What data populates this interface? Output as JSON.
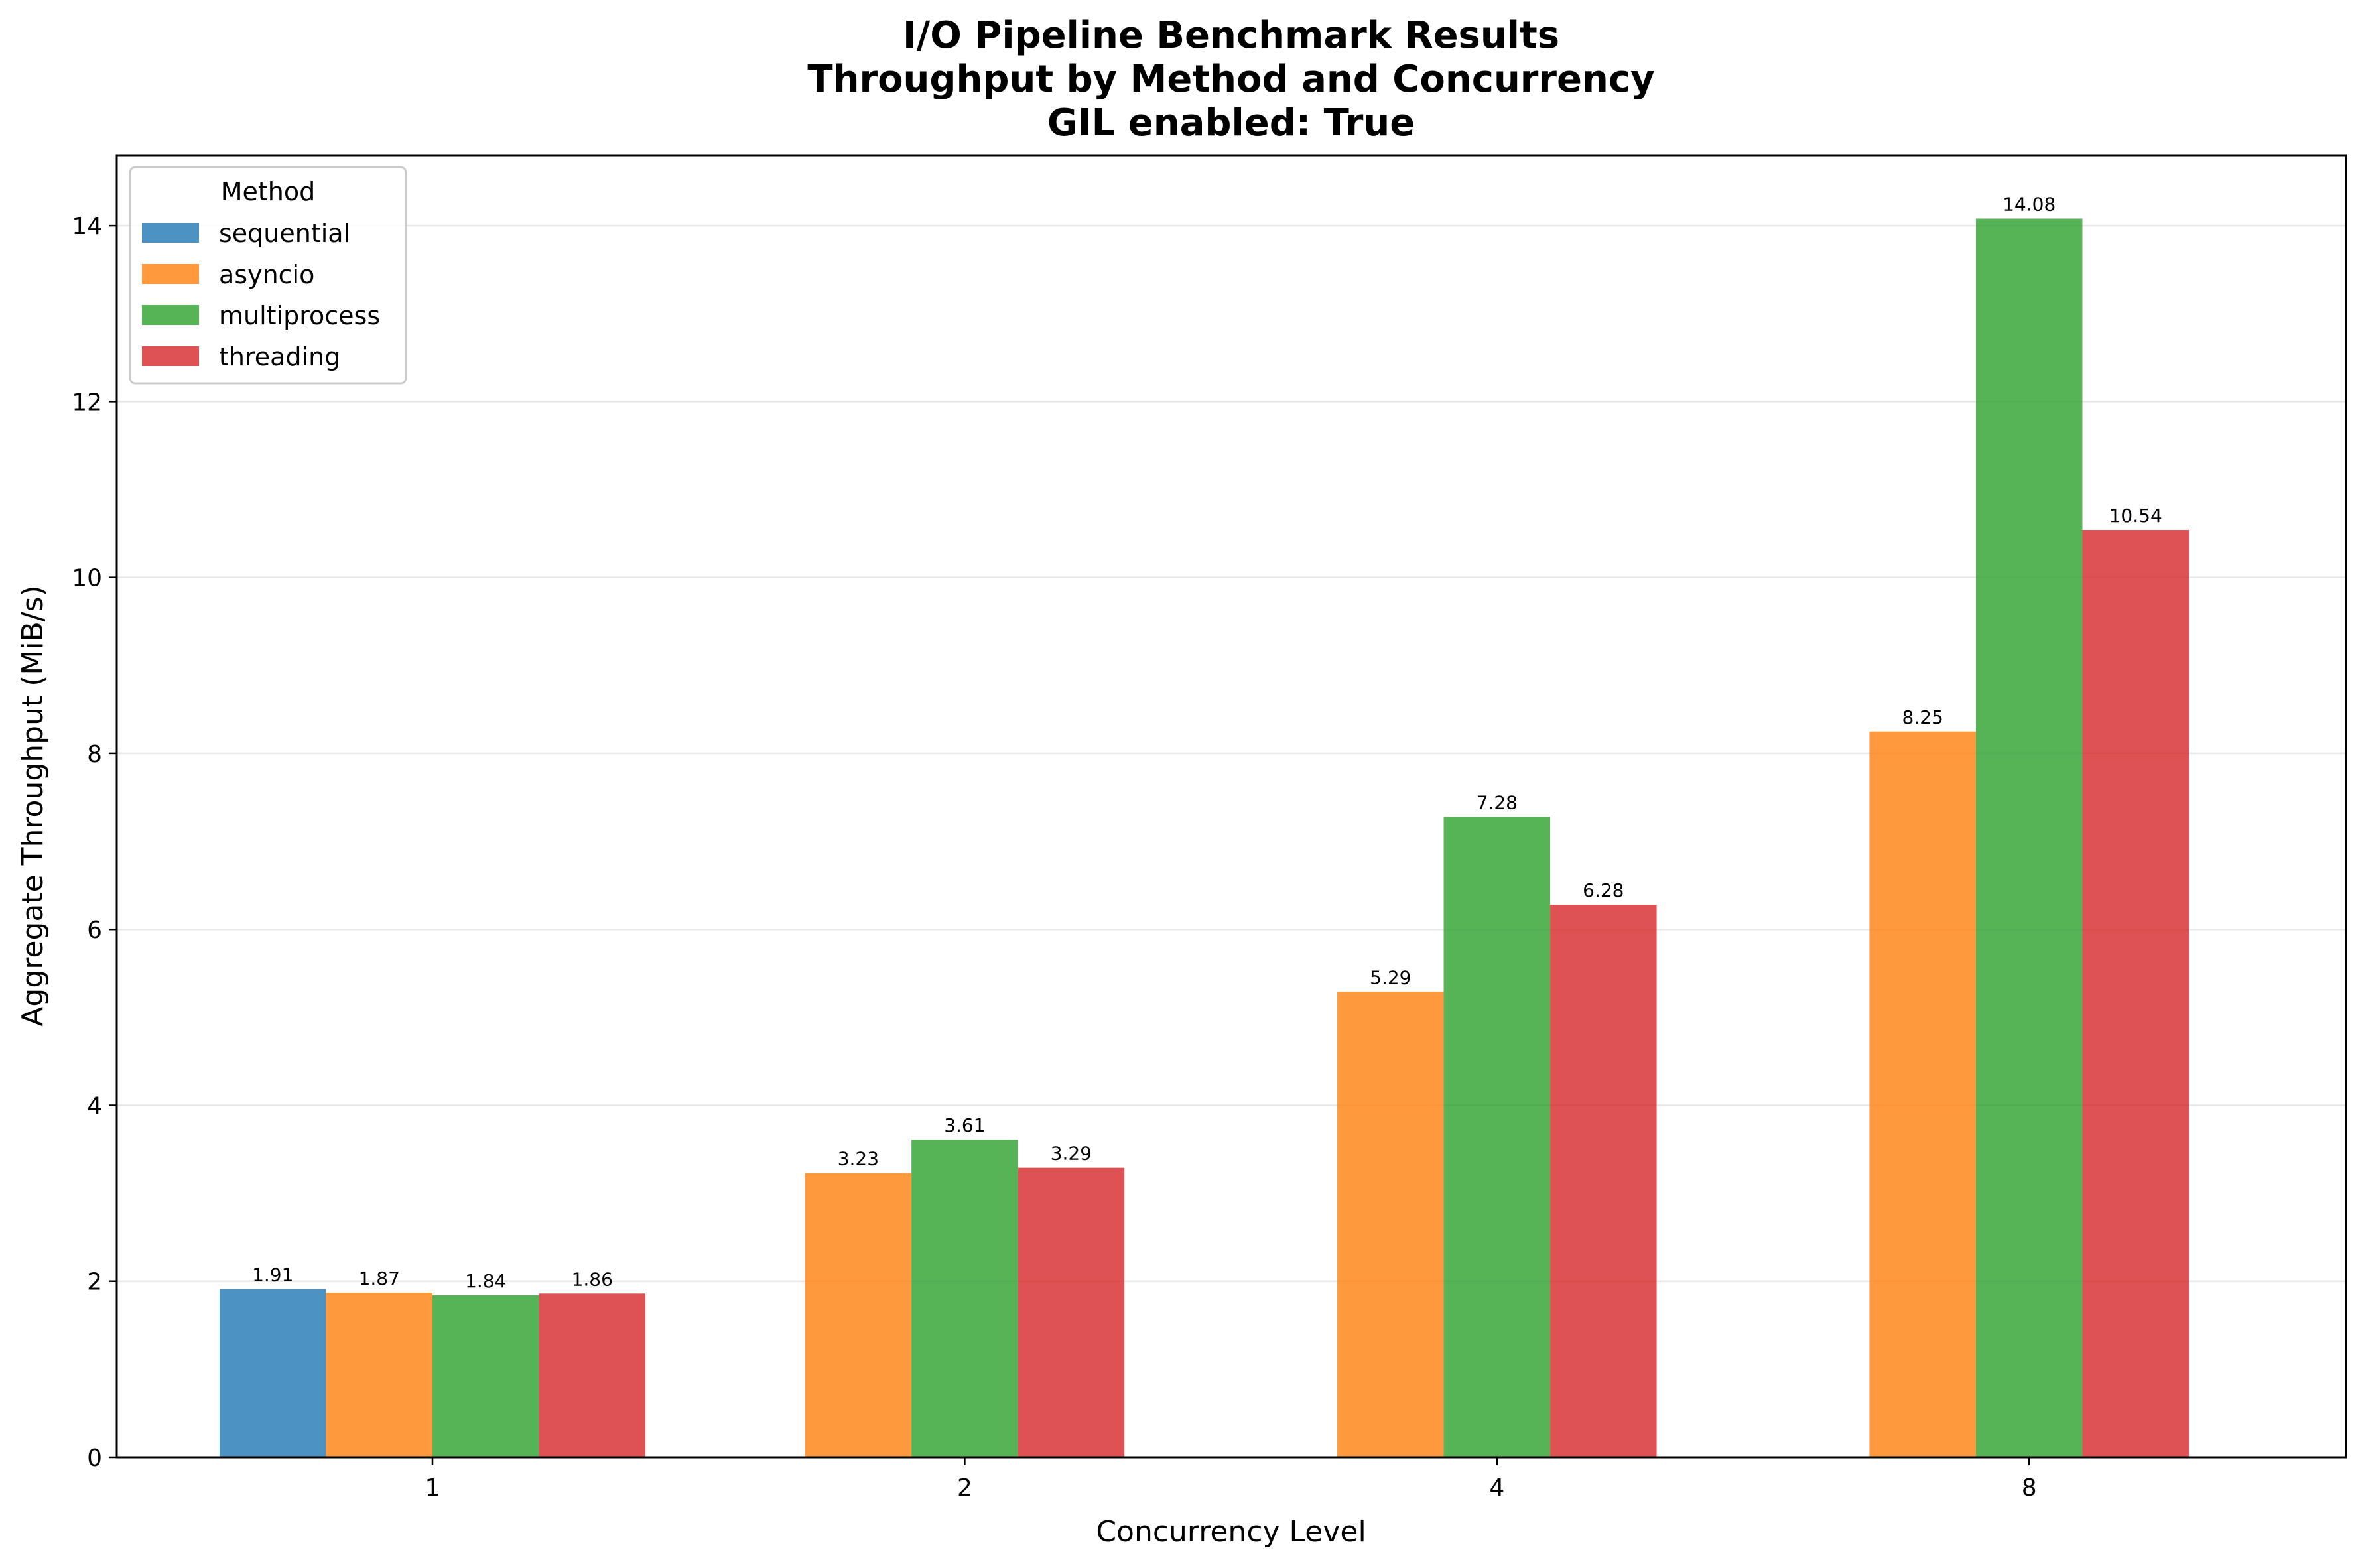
{
  "chart_data": {
    "type": "bar",
    "title": [
      "I/O Pipeline Benchmark Results",
      "Throughput by Method and Concurrency",
      "GIL enabled: True"
    ],
    "xlabel": "Concurrency Level",
    "ylabel": "Aggregate Throughput (MiB/s)",
    "categories": [
      "1",
      "2",
      "4",
      "8"
    ],
    "ylim": [
      0,
      14.8
    ],
    "yticks": [
      0,
      2,
      4,
      6,
      8,
      10,
      12,
      14
    ],
    "grid": "y",
    "legend": {
      "title": "Method",
      "placement": "top-left"
    },
    "series": [
      {
        "name": "sequential",
        "color": "#1f77b4",
        "values": [
          1.91,
          null,
          null,
          null
        ]
      },
      {
        "name": "asyncio",
        "color": "#ff7f0e",
        "values": [
          1.87,
          3.23,
          5.29,
          8.25
        ]
      },
      {
        "name": "multiprocess",
        "color": "#2ca02c",
        "values": [
          1.84,
          3.61,
          7.28,
          14.08
        ]
      },
      {
        "name": "threading",
        "color": "#d62728",
        "values": [
          1.86,
          3.29,
          6.28,
          10.54
        ]
      }
    ]
  }
}
